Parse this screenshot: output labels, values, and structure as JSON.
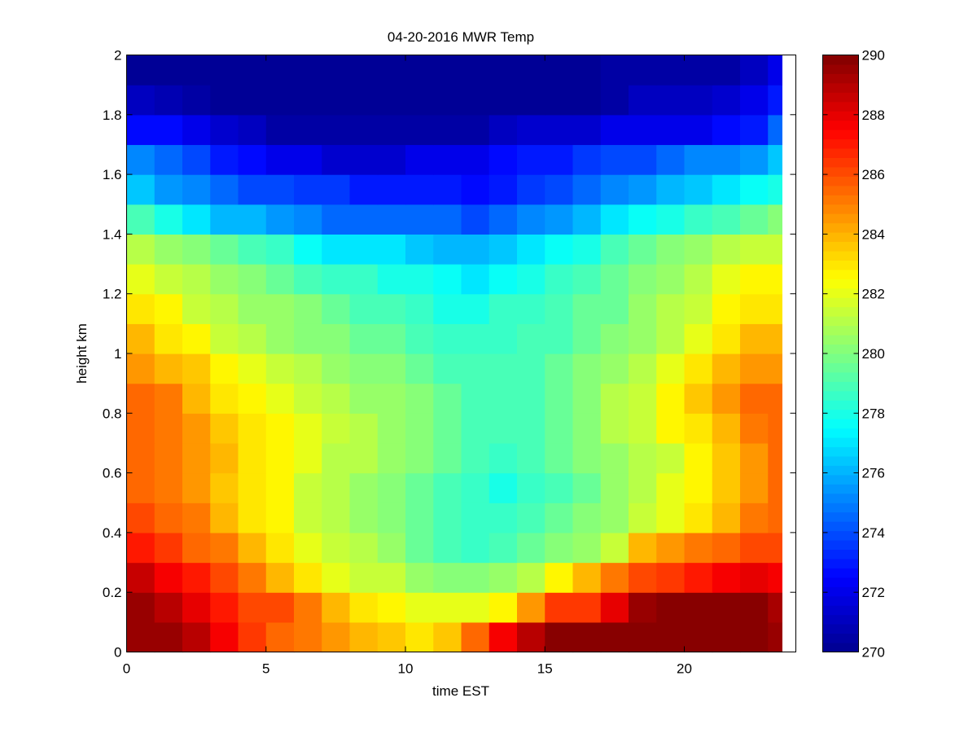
{
  "chart_data": {
    "type": "heatmap",
    "title": "04-20-2016 MWR Temp",
    "xlabel": "time EST",
    "ylabel": "height km",
    "xlim": [
      0,
      24
    ],
    "ylim": [
      0,
      2
    ],
    "x_ticks": [
      0,
      5,
      10,
      15,
      20
    ],
    "y_ticks": [
      0,
      0.2,
      0.4,
      0.6,
      0.8,
      1,
      1.2,
      1.4,
      1.6,
      1.8,
      2
    ],
    "colorbar": {
      "colormap": "jet",
      "range": [
        270,
        290
      ],
      "ticks": [
        270,
        272,
        274,
        276,
        278,
        280,
        282,
        284,
        286,
        288,
        290
      ]
    },
    "colormap_stops": [
      "#00008f",
      "#0000ff",
      "#00ffff",
      "#ffff00",
      "#ff0000",
      "#800000"
    ],
    "x": [
      0,
      1,
      2,
      3,
      4,
      5,
      6,
      7,
      8,
      9,
      10,
      11,
      12,
      13,
      14,
      15,
      16,
      17,
      18,
      19,
      20,
      21,
      22,
      23
    ],
    "y": [
      0,
      0.1,
      0.2,
      0.3,
      0.4,
      0.5,
      0.6,
      0.7,
      0.8,
      0.9,
      1.0,
      1.1,
      1.2,
      1.3,
      1.4,
      1.5,
      1.6,
      1.7,
      1.8,
      1.9
    ],
    "z": [
      [
        289.5,
        289.5,
        289.0,
        287.5,
        286.5,
        285.5,
        285.0,
        284.5,
        284.0,
        283.5,
        283.0,
        283.5,
        285.5,
        287.5,
        289.0,
        289.8,
        289.8,
        289.8,
        289.8,
        289.8,
        289.8,
        289.8,
        289.8,
        289.5
      ],
      [
        289.5,
        289.0,
        288.0,
        287.0,
        286.0,
        286.0,
        285.0,
        284.0,
        283.0,
        282.5,
        282.0,
        282.0,
        282.0,
        282.5,
        284.5,
        286.5,
        286.5,
        288.0,
        289.5,
        289.8,
        289.8,
        289.8,
        289.8,
        289.3
      ],
      [
        288.5,
        287.5,
        287.0,
        286.0,
        285.0,
        284.0,
        283.0,
        282.0,
        281.5,
        281.5,
        280.5,
        280.0,
        280.0,
        280.5,
        281.0,
        282.5,
        284.0,
        285.0,
        286.0,
        286.5,
        287.0,
        287.5,
        288.0,
        287.5
      ],
      [
        287.0,
        286.5,
        285.5,
        285.0,
        284.0,
        283.0,
        282.0,
        281.5,
        281.0,
        280.5,
        279.5,
        279.0,
        278.5,
        279.0,
        279.5,
        280.0,
        280.5,
        281.5,
        284.0,
        284.5,
        285.0,
        285.5,
        286.0,
        286.0
      ],
      [
        286.0,
        285.5,
        285.0,
        284.0,
        283.0,
        282.5,
        281.5,
        281.0,
        280.5,
        280.0,
        279.5,
        279.0,
        278.5,
        278.5,
        279.0,
        279.5,
        280.0,
        280.5,
        281.5,
        282.0,
        283.0,
        284.0,
        285.0,
        285.5
      ],
      [
        285.5,
        285.0,
        284.5,
        283.5,
        283.0,
        282.5,
        281.5,
        281.0,
        280.5,
        280.0,
        279.5,
        279.0,
        278.5,
        278.0,
        278.5,
        279.0,
        279.5,
        280.5,
        281.0,
        282.0,
        282.5,
        283.5,
        284.5,
        285.5
      ],
      [
        285.5,
        285.0,
        284.5,
        284.0,
        283.0,
        282.5,
        282.0,
        281.0,
        281.0,
        280.5,
        280.0,
        279.5,
        279.0,
        278.5,
        279.0,
        279.5,
        280.0,
        280.5,
        281.0,
        281.5,
        282.5,
        283.5,
        284.5,
        285.5
      ],
      [
        285.5,
        285.0,
        284.5,
        283.5,
        283.0,
        282.5,
        282.0,
        281.5,
        281.0,
        280.5,
        280.0,
        279.5,
        279.0,
        279.0,
        279.0,
        279.5,
        280.0,
        281.0,
        281.5,
        282.5,
        283.0,
        284.0,
        285.0,
        285.5
      ],
      [
        285.5,
        285.0,
        284.0,
        283.0,
        282.5,
        282.0,
        281.5,
        281.0,
        280.5,
        280.5,
        280.0,
        279.5,
        279.0,
        279.0,
        279.0,
        279.5,
        280.0,
        281.0,
        281.5,
        282.5,
        283.5,
        284.5,
        285.5,
        285.5
      ],
      [
        284.5,
        284.0,
        283.5,
        282.5,
        282.0,
        281.5,
        281.0,
        280.5,
        280.0,
        280.0,
        279.5,
        279.0,
        279.0,
        279.0,
        279.0,
        279.5,
        280.0,
        280.5,
        281.0,
        282.0,
        283.0,
        284.0,
        284.5,
        284.5
      ],
      [
        284.0,
        283.0,
        282.5,
        281.5,
        281.0,
        280.5,
        280.0,
        280.0,
        279.5,
        279.5,
        279.0,
        278.5,
        278.5,
        278.5,
        279.0,
        279.0,
        279.5,
        280.0,
        280.5,
        281.0,
        282.0,
        283.0,
        284.0,
        284.0
      ],
      [
        283.0,
        282.5,
        281.5,
        281.0,
        280.5,
        280.5,
        280.0,
        279.5,
        279.0,
        279.0,
        278.5,
        278.0,
        278.0,
        278.5,
        278.5,
        279.0,
        279.5,
        279.5,
        280.5,
        281.0,
        281.5,
        282.5,
        283.0,
        283.0
      ],
      [
        282.0,
        281.5,
        281.0,
        280.5,
        280.0,
        279.5,
        279.0,
        278.5,
        278.5,
        278.0,
        278.0,
        277.5,
        277.0,
        277.5,
        278.0,
        278.5,
        279.0,
        279.5,
        280.0,
        280.5,
        281.0,
        282.0,
        282.5,
        282.5
      ],
      [
        281.0,
        280.5,
        280.0,
        279.5,
        279.0,
        278.5,
        277.5,
        277.0,
        277.0,
        277.0,
        276.5,
        276.0,
        276.0,
        276.5,
        277.0,
        277.5,
        278.0,
        279.0,
        279.5,
        280.0,
        280.5,
        281.0,
        281.5,
        281.5
      ],
      [
        279.0,
        278.0,
        277.0,
        276.0,
        276.0,
        275.5,
        275.0,
        274.5,
        274.5,
        274.5,
        274.5,
        274.5,
        274.0,
        274.5,
        275.0,
        275.5,
        276.0,
        277.0,
        277.5,
        278.0,
        278.5,
        279.0,
        279.5,
        280.0
      ],
      [
        276.5,
        275.5,
        275.0,
        274.5,
        274.0,
        274.0,
        273.5,
        273.5,
        273.0,
        273.0,
        273.0,
        273.0,
        272.5,
        273.0,
        273.5,
        274.0,
        274.5,
        275.0,
        275.5,
        276.0,
        276.5,
        277.0,
        277.5,
        278.0
      ],
      [
        275.0,
        274.5,
        274.0,
        273.0,
        272.5,
        272.0,
        272.0,
        271.5,
        271.5,
        271.5,
        272.0,
        272.0,
        272.0,
        272.5,
        273.0,
        273.0,
        273.5,
        274.0,
        274.0,
        274.5,
        275.0,
        275.0,
        275.5,
        276.5
      ],
      [
        272.5,
        272.5,
        272.0,
        271.5,
        271.0,
        270.5,
        270.5,
        270.5,
        270.5,
        270.5,
        270.5,
        270.5,
        270.5,
        271.0,
        271.5,
        271.5,
        271.5,
        272.0,
        272.0,
        272.0,
        272.0,
        272.5,
        273.0,
        274.5
      ],
      [
        271.0,
        270.8,
        270.5,
        270.3,
        270.2,
        270.0,
        270.0,
        270.0,
        270.0,
        270.0,
        269.8,
        269.8,
        269.5,
        270.0,
        270.2,
        270.2,
        270.3,
        270.5,
        271.0,
        271.0,
        271.2,
        271.5,
        272.0,
        273.0
      ],
      [
        270.3,
        270.2,
        270.2,
        270.2,
        270.2,
        270.2,
        270.2,
        270.2,
        270.2,
        270.2,
        270.2,
        270.2,
        270.2,
        270.2,
        270.2,
        270.2,
        270.3,
        270.5,
        270.5,
        270.5,
        270.5,
        270.5,
        271.0,
        272.0
      ]
    ]
  }
}
